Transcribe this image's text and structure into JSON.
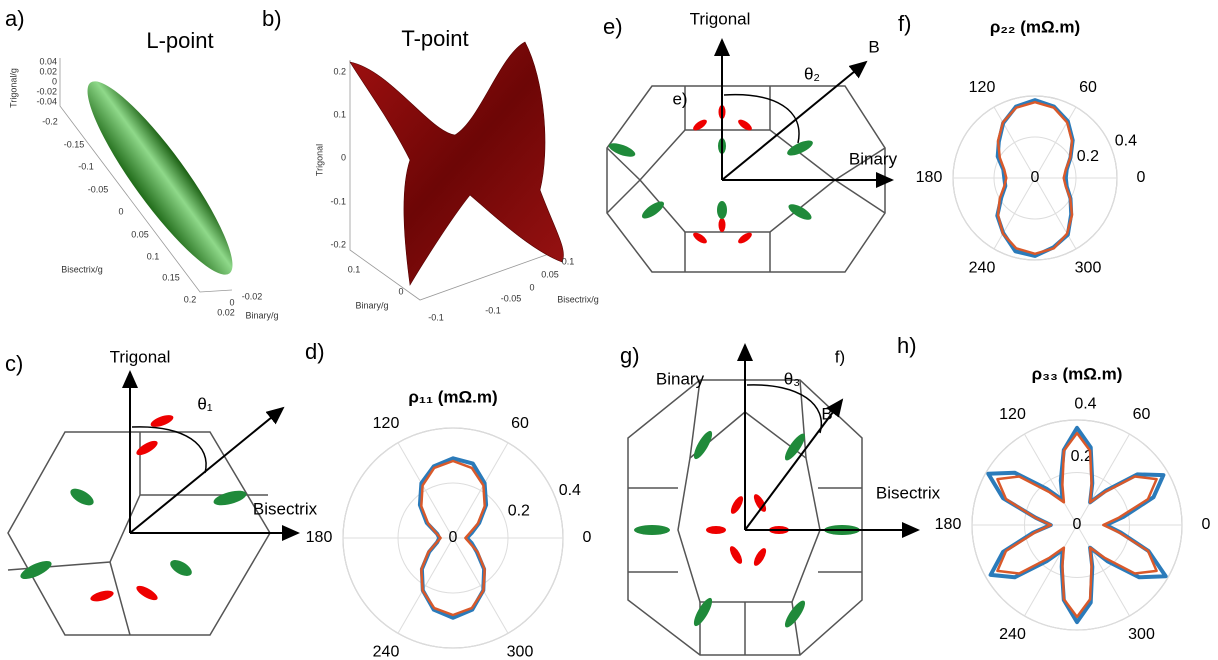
{
  "panels": {
    "a": {
      "label": "a)",
      "title": "L-point",
      "axes": [
        {
          "label": "Trigonal/g",
          "ticks": [
            "0.04",
            "0.02",
            "0",
            "-0.02",
            "-0.04"
          ]
        },
        {
          "label": "Bisectrix/g",
          "ticks": [
            "-0.2",
            "-0.15",
            "-0.1",
            "-0.05",
            "0",
            "0.05",
            "0.1",
            "0.15",
            "0.2"
          ]
        },
        {
          "label": "Binary/g",
          "ticks": [
            "-0.02",
            "0",
            "0.02"
          ]
        }
      ]
    },
    "b": {
      "label": "b)",
      "title": "T-point",
      "axes": [
        {
          "label": "Trigonal",
          "ticks": [
            "0.2",
            "0.1",
            "0",
            "-0.1",
            "-0.2"
          ]
        },
        {
          "label": "Binary/g",
          "ticks": [
            "0.1",
            "0",
            "-0.1"
          ]
        },
        {
          "label": "Bisectrix/g",
          "ticks": [
            "0.1",
            "0.05",
            "0",
            "-0.05",
            "-0.1"
          ]
        }
      ]
    },
    "c": {
      "label": "c)",
      "texts": [
        "Trigonal",
        "θ₁",
        "Bisectrix"
      ]
    },
    "d": {
      "label": "d)"
    },
    "e": {
      "label": "e)",
      "texts": [
        "Trigonal",
        "θ₂",
        "B",
        "Binary",
        "e)"
      ]
    },
    "f": {
      "label": "f)"
    },
    "g": {
      "label": "g)",
      "texts": [
        "Binary",
        "θ₃",
        "f)",
        "B",
        "Bisectrix"
      ]
    },
    "h": {
      "label": "h)"
    }
  },
  "chart_data": [
    {
      "type": "polar",
      "title": "ρ₁₁ (mΩ.m)",
      "rlim": [
        0,
        0.4
      ],
      "rticks": [
        0,
        0.2,
        0.4
      ],
      "thetaticks": [
        0,
        60,
        120,
        180,
        240,
        300
      ],
      "theta": [
        0,
        15,
        30,
        45,
        60,
        75,
        90,
        105,
        120,
        135,
        150,
        165,
        180,
        195,
        210,
        225,
        240,
        255,
        270,
        285,
        300,
        315,
        330,
        345
      ],
      "series": [
        {
          "color": "#2b7bba",
          "values": [
            0.05,
            0.07,
            0.11,
            0.17,
            0.23,
            0.28,
            0.29,
            0.27,
            0.23,
            0.17,
            0.11,
            0.06,
            0.05,
            0.06,
            0.1,
            0.16,
            0.22,
            0.27,
            0.29,
            0.27,
            0.22,
            0.16,
            0.1,
            0.07
          ]
        },
        {
          "color": "#d9592a",
          "values": [
            0.045,
            0.061,
            0.104,
            0.163,
            0.221,
            0.264,
            0.28,
            0.264,
            0.221,
            0.163,
            0.104,
            0.061,
            0.045,
            0.061,
            0.104,
            0.163,
            0.221,
            0.264,
            0.28,
            0.264,
            0.221,
            0.163,
            0.104,
            0.061
          ]
        }
      ]
    },
    {
      "type": "polar",
      "title": "ρ₂₂ (mΩ.m)",
      "rlim": [
        0,
        0.4
      ],
      "rticks": [
        0,
        0.2,
        0.4
      ],
      "thetaticks": [
        0,
        60,
        120,
        180,
        240,
        300
      ],
      "theta": [
        0,
        15,
        30,
        45,
        60,
        75,
        90,
        105,
        120,
        135,
        150,
        165,
        180,
        195,
        210,
        225,
        240,
        255,
        270,
        285,
        300,
        315,
        330,
        345
      ],
      "series": [
        {
          "color": "#2b7bba",
          "values": [
            0.15,
            0.16,
            0.2,
            0.26,
            0.32,
            0.36,
            0.38,
            0.36,
            0.31,
            0.25,
            0.21,
            0.16,
            0.15,
            0.15,
            0.19,
            0.26,
            0.31,
            0.37,
            0.38,
            0.35,
            0.32,
            0.25,
            0.2,
            0.16
          ]
        },
        {
          "color": "#d9592a",
          "values": [
            0.14,
            0.155,
            0.198,
            0.255,
            0.313,
            0.355,
            0.37,
            0.355,
            0.313,
            0.255,
            0.198,
            0.155,
            0.14,
            0.155,
            0.198,
            0.255,
            0.313,
            0.355,
            0.37,
            0.355,
            0.313,
            0.255,
            0.198,
            0.155
          ]
        }
      ]
    },
    {
      "type": "polar",
      "title": "ρ₃₃ (mΩ.m)",
      "rlim": [
        0,
        0.4
      ],
      "rticks": [
        0,
        0.2,
        0.4
      ],
      "thetaticks": [
        0,
        60,
        120,
        180,
        240,
        300
      ],
      "theta": [
        0,
        10,
        20,
        30,
        40,
        50,
        60,
        70,
        80,
        90,
        100,
        110,
        120,
        130,
        140,
        150,
        160,
        170,
        180,
        190,
        200,
        210,
        220,
        230,
        240,
        250,
        260,
        270,
        280,
        290,
        300,
        310,
        320,
        330,
        340,
        350
      ],
      "series": [
        {
          "color": "#2b7bba",
          "values": [
            0.11,
            0.18,
            0.31,
            0.38,
            0.3,
            0.17,
            0.1,
            0.17,
            0.3,
            0.37,
            0.29,
            0.18,
            0.11,
            0.18,
            0.31,
            0.39,
            0.3,
            0.16,
            0.1,
            0.17,
            0.3,
            0.38,
            0.31,
            0.18,
            0.11,
            0.17,
            0.29,
            0.37,
            0.3,
            0.17,
            0.1,
            0.18,
            0.31,
            0.39,
            0.29,
            0.17
          ]
        },
        {
          "color": "#d9592a",
          "values": [
            0.1,
            0.1625,
            0.2875,
            0.35,
            0.2875,
            0.1625,
            0.1,
            0.1625,
            0.2875,
            0.35,
            0.2875,
            0.1625,
            0.1,
            0.1625,
            0.2875,
            0.35,
            0.2875,
            0.1625,
            0.1,
            0.1625,
            0.2875,
            0.35,
            0.2875,
            0.1625,
            0.1,
            0.1625,
            0.2875,
            0.35,
            0.2875,
            0.1625,
            0.1,
            0.1625,
            0.2875,
            0.35,
            0.2875,
            0.1625
          ]
        }
      ]
    }
  ]
}
